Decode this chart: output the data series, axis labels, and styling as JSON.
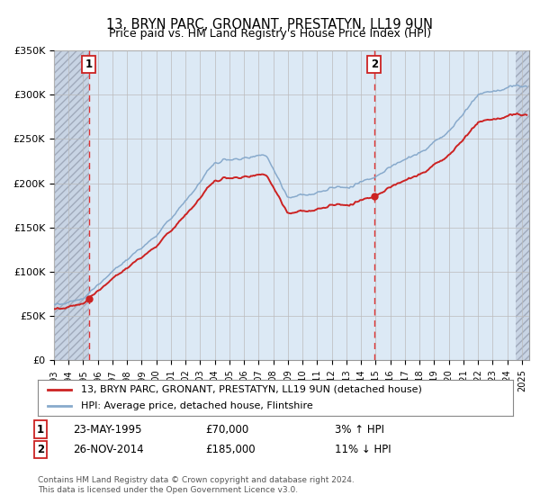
{
  "title": "13, BRYN PARC, GRONANT, PRESTATYN, LL19 9UN",
  "subtitle": "Price paid vs. HM Land Registry's House Price Index (HPI)",
  "footer": "Contains HM Land Registry data © Crown copyright and database right 2024.\nThis data is licensed under the Open Government Licence v3.0.",
  "legend_line1": "13, BRYN PARC, GRONANT, PRESTATYN, LL19 9UN (detached house)",
  "legend_line2": "HPI: Average price, detached house, Flintshire",
  "ann1_label": "1",
  "ann1_date": "23-MAY-1995",
  "ann1_price": "£70,000",
  "ann1_hpi": "3% ↑ HPI",
  "ann2_label": "2",
  "ann2_date": "26-NOV-2014",
  "ann2_price": "£185,000",
  "ann2_hpi": "11% ↓ HPI",
  "ylim": [
    0,
    350000
  ],
  "xlim_start": 1993.0,
  "xlim_end": 2025.5,
  "hatch_end_year": 1995.38,
  "hatch_start_year": 2024.58,
  "sale1_x": 1995.38,
  "sale1_y": 70000,
  "sale2_x": 2014.9,
  "sale2_y": 185000,
  "bg_color": "#dce9f5",
  "hatch_bg": "#c8d4e4",
  "grid_color": "#bbbbbb",
  "line_red": "#cc2222",
  "line_blue": "#88aacc",
  "ann_box_color": "#cc2222",
  "yticks": [
    0,
    50000,
    100000,
    150000,
    200000,
    250000,
    300000,
    350000
  ],
  "ytick_labels": [
    "£0",
    "£50K",
    "£100K",
    "£150K",
    "£200K",
    "£250K",
    "£300K",
    "£350K"
  ],
  "xticks": [
    1993,
    1994,
    1995,
    1996,
    1997,
    1998,
    1999,
    2000,
    2001,
    2002,
    2003,
    2004,
    2005,
    2006,
    2007,
    2008,
    2009,
    2010,
    2011,
    2012,
    2013,
    2014,
    2015,
    2016,
    2017,
    2018,
    2019,
    2020,
    2021,
    2022,
    2023,
    2024,
    2025
  ]
}
